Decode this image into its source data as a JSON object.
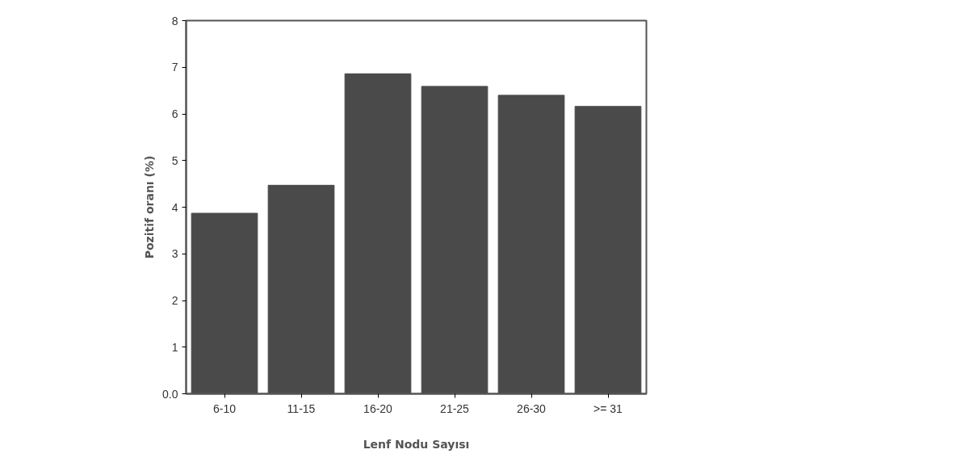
{
  "chart_data": {
    "type": "bar",
    "xlabel": "Lenf Nodu Sayısı",
    "ylabel": "Pozitif oranı (%)",
    "categories": [
      "6-10",
      "11-15",
      "16-20",
      "21-25",
      "26-30",
      ">= 31"
    ],
    "values": [
      3.87,
      4.47,
      6.86,
      6.59,
      6.4,
      6.16
    ],
    "color": "#4a4a4a",
    "ylim": [
      0,
      8
    ],
    "yticks": [
      {
        "value": 0,
        "label": "0.0"
      },
      1,
      2,
      3,
      4,
      5,
      6,
      7,
      8
    ],
    "grid": false
  }
}
